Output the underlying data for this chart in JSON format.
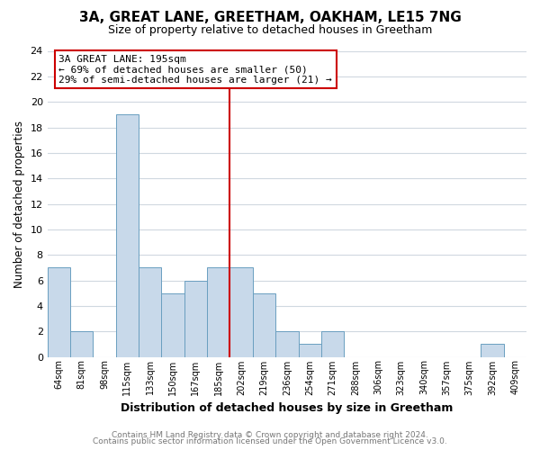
{
  "title": "3A, GREAT LANE, GREETHAM, OAKHAM, LE15 7NG",
  "subtitle": "Size of property relative to detached houses in Greetham",
  "xlabel": "Distribution of detached houses by size in Greetham",
  "ylabel": "Number of detached properties",
  "bin_labels": [
    "64sqm",
    "81sqm",
    "98sqm",
    "115sqm",
    "133sqm",
    "150sqm",
    "167sqm",
    "185sqm",
    "202sqm",
    "219sqm",
    "236sqm",
    "254sqm",
    "271sqm",
    "288sqm",
    "306sqm",
    "323sqm",
    "340sqm",
    "357sqm",
    "375sqm",
    "392sqm",
    "409sqm"
  ],
  "bar_heights": [
    7,
    2,
    0,
    19,
    7,
    5,
    6,
    7,
    7,
    5,
    2,
    1,
    2,
    0,
    0,
    0,
    0,
    0,
    0,
    1,
    0
  ],
  "bar_color": "#c8d9ea",
  "bar_edge_color": "#6a9fc0",
  "vline_x_index": 8,
  "vline_color": "#cc0000",
  "annotation_line1": "3A GREAT LANE: 195sqm",
  "annotation_line2": "← 69% of detached houses are smaller (50)",
  "annotation_line3": "29% of semi-detached houses are larger (21) →",
  "annotation_box_edgecolor": "#cc0000",
  "annotation_box_facecolor": "#ffffff",
  "ylim": [
    0,
    24
  ],
  "yticks": [
    0,
    2,
    4,
    6,
    8,
    10,
    12,
    14,
    16,
    18,
    20,
    22,
    24
  ],
  "footer1": "Contains HM Land Registry data © Crown copyright and database right 2024.",
  "footer2": "Contains public sector information licensed under the Open Government Licence v3.0.",
  "background_color": "#ffffff",
  "grid_color": "#d0d8e0",
  "title_fontsize": 11,
  "subtitle_fontsize": 9
}
